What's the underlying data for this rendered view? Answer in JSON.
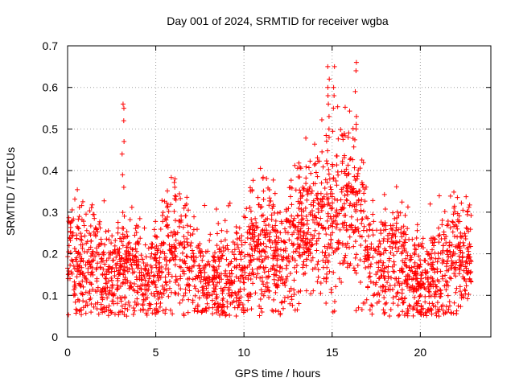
{
  "chart_data": {
    "type": "scatter",
    "title": "Day 001 of 2024, SRMTID for receiver wgba",
    "xlabel": "GPS time / hours",
    "ylabel": "SRMTID / TECUs",
    "xlim": [
      0,
      24
    ],
    "ylim": [
      0,
      0.7
    ],
    "xticks": [
      0,
      5,
      10,
      15,
      20
    ],
    "xtick_labels": [
      "0",
      "5",
      "10",
      "15",
      "20"
    ],
    "yticks": [
      0,
      0.1,
      0.2,
      0.3,
      0.4,
      0.5,
      0.6,
      0.7
    ],
    "ytick_labels": [
      "0",
      "0.1",
      "0.2",
      "0.3",
      "0.4",
      "0.5",
      "0.6",
      "0.7"
    ],
    "grid": true,
    "marker": "+",
    "color": "#ff0000",
    "series": [
      {
        "name": "SRMTID",
        "trend": {
          "x": [
            0,
            0.5,
            1,
            1.5,
            2,
            2.5,
            3,
            3.5,
            4,
            4.5,
            5,
            5.5,
            6,
            6.5,
            7,
            7.5,
            8,
            8.5,
            9,
            9.5,
            10,
            10.5,
            11,
            11.5,
            12,
            12.5,
            13,
            13.5,
            14,
            14.5,
            15,
            15.5,
            16,
            16.5,
            17,
            17.5,
            18,
            18.5,
            19,
            19.5,
            20,
            20.5,
            21,
            21.5,
            22,
            22.5,
            22.9
          ],
          "y": [
            0.18,
            0.18,
            0.17,
            0.19,
            0.15,
            0.15,
            0.17,
            0.16,
            0.15,
            0.14,
            0.15,
            0.2,
            0.22,
            0.19,
            0.16,
            0.13,
            0.15,
            0.15,
            0.15,
            0.15,
            0.15,
            0.22,
            0.2,
            0.22,
            0.18,
            0.22,
            0.26,
            0.25,
            0.29,
            0.3,
            0.3,
            0.32,
            0.33,
            0.3,
            0.2,
            0.18,
            0.18,
            0.19,
            0.16,
            0.15,
            0.13,
            0.14,
            0.15,
            0.17,
            0.2,
            0.19,
            0.17
          ]
        },
        "spikes": [
          {
            "x": 3.15,
            "y": [
              0.56,
              0.55,
              0.52,
              0.47,
              0.44,
              0.39,
              0.36
            ]
          },
          {
            "x": 6.1,
            "y": [
              0.38,
              0.36
            ]
          },
          {
            "x": 14.8,
            "y": [
              0.65,
              0.62,
              0.6,
              0.58,
              0.56,
              0.53,
              0.5,
              0.48
            ]
          },
          {
            "x": 15.1,
            "y": [
              0.65,
              0.6,
              0.58,
              0.55
            ]
          },
          {
            "x": 16.35,
            "y": [
              0.66,
              0.64,
              0.59,
              0.53,
              0.5
            ]
          },
          {
            "x": 15.0,
            "y": [
              0.06
            ]
          },
          {
            "x": 16.5,
            "y": [
              0.07
            ]
          },
          {
            "x": 21.0,
            "y": [
              0.05
            ]
          }
        ]
      }
    ]
  }
}
